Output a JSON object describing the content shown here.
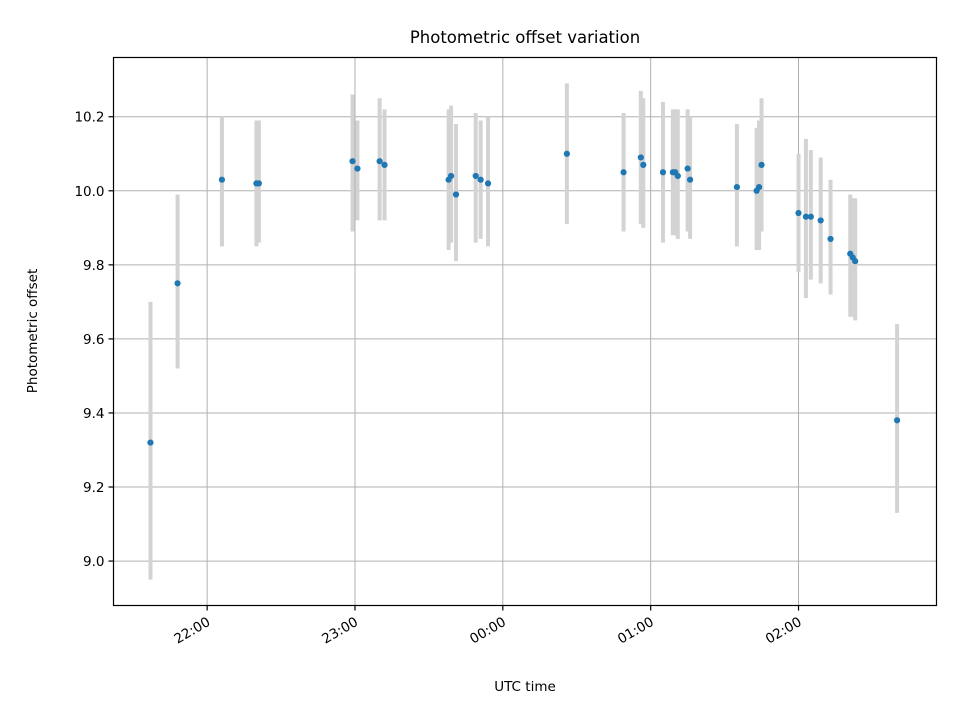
{
  "chart_data": {
    "type": "scatter",
    "title": "Photometric offset variation",
    "xlabel": "UTC time",
    "ylabel": "Photometric offset",
    "x_tick_labels": [
      "22:00",
      "23:00",
      "00:00",
      "01:00",
      "02:00"
    ],
    "x_ticks": [
      "21:00:00",
      "22:00:00",
      "23:00:00",
      "24:00:00",
      "25:00:00",
      "26:00:00"
    ],
    "y_ticks": [
      9.0,
      9.2,
      9.4,
      9.6,
      9.8,
      10.0,
      10.2
    ],
    "y_tick_labels": [
      "9.0",
      "9.2",
      "9.4",
      "9.6",
      "9.8",
      "10.0",
      "10.2"
    ],
    "xlim": [
      "21:22:00",
      "26:56:00"
    ],
    "ylim": [
      8.88,
      10.36
    ],
    "grid": true,
    "series": [
      {
        "color": "#1f77b4",
        "errorbar_color": "#d3d3d3",
        "points": [
          {
            "x": "21:37:00",
            "y": 9.32,
            "lo": 8.95,
            "hi": 9.7
          },
          {
            "x": "21:48:00",
            "y": 9.75,
            "lo": 9.52,
            "hi": 9.99
          },
          {
            "x": "22:06:00",
            "y": 10.03,
            "lo": 9.85,
            "hi": 10.2
          },
          {
            "x": "22:20:00",
            "y": 10.02,
            "lo": 9.85,
            "hi": 10.19
          },
          {
            "x": "22:21:00",
            "y": 10.02,
            "lo": 9.86,
            "hi": 10.19
          },
          {
            "x": "22:59:00",
            "y": 10.08,
            "lo": 9.89,
            "hi": 10.26
          },
          {
            "x": "23:01:00",
            "y": 10.06,
            "lo": 9.92,
            "hi": 10.19
          },
          {
            "x": "23:10:00",
            "y": 10.08,
            "lo": 9.92,
            "hi": 10.25
          },
          {
            "x": "23:12:00",
            "y": 10.07,
            "lo": 9.92,
            "hi": 10.22
          },
          {
            "x": "23:38:00",
            "y": 10.03,
            "lo": 9.84,
            "hi": 10.22
          },
          {
            "x": "23:39:00",
            "y": 10.04,
            "lo": 9.86,
            "hi": 10.23
          },
          {
            "x": "23:41:00",
            "y": 9.99,
            "lo": 9.81,
            "hi": 10.18
          },
          {
            "x": "23:49:00",
            "y": 10.04,
            "lo": 9.86,
            "hi": 10.21
          },
          {
            "x": "23:51:00",
            "y": 10.03,
            "lo": 9.87,
            "hi": 10.19
          },
          {
            "x": "23:54:00",
            "y": 10.02,
            "lo": 9.85,
            "hi": 10.2
          },
          {
            "x": "24:26:00",
            "y": 10.1,
            "lo": 9.91,
            "hi": 10.29
          },
          {
            "x": "24:49:00",
            "y": 10.05,
            "lo": 9.89,
            "hi": 10.21
          },
          {
            "x": "24:56:00",
            "y": 10.09,
            "lo": 9.91,
            "hi": 10.27
          },
          {
            "x": "24:57:00",
            "y": 10.07,
            "lo": 9.9,
            "hi": 10.25
          },
          {
            "x": "25:05:00",
            "y": 10.05,
            "lo": 9.86,
            "hi": 10.24
          },
          {
            "x": "25:09:00",
            "y": 10.05,
            "lo": 9.88,
            "hi": 10.22
          },
          {
            "x": "25:10:00",
            "y": 10.05,
            "lo": 9.88,
            "hi": 10.22
          },
          {
            "x": "25:11:00",
            "y": 10.04,
            "lo": 9.87,
            "hi": 10.22
          },
          {
            "x": "25:15:00",
            "y": 10.06,
            "lo": 9.89,
            "hi": 10.22
          },
          {
            "x": "25:16:00",
            "y": 10.03,
            "lo": 9.87,
            "hi": 10.2
          },
          {
            "x": "25:35:00",
            "y": 10.01,
            "lo": 9.85,
            "hi": 10.18
          },
          {
            "x": "25:43:00",
            "y": 10.0,
            "lo": 9.84,
            "hi": 10.17
          },
          {
            "x": "25:44:00",
            "y": 10.01,
            "lo": 9.84,
            "hi": 10.19
          },
          {
            "x": "25:45:00",
            "y": 10.07,
            "lo": 9.89,
            "hi": 10.25
          },
          {
            "x": "26:00:00",
            "y": 9.94,
            "lo": 9.78,
            "hi": 10.1
          },
          {
            "x": "26:03:00",
            "y": 9.93,
            "lo": 9.71,
            "hi": 10.14
          },
          {
            "x": "26:05:00",
            "y": 9.93,
            "lo": 9.76,
            "hi": 10.11
          },
          {
            "x": "26:09:00",
            "y": 9.92,
            "lo": 9.75,
            "hi": 10.09
          },
          {
            "x": "26:13:00",
            "y": 9.87,
            "lo": 9.72,
            "hi": 10.03
          },
          {
            "x": "26:21:00",
            "y": 9.83,
            "lo": 9.66,
            "hi": 9.99
          },
          {
            "x": "26:22:00",
            "y": 9.82,
            "lo": 9.66,
            "hi": 9.98
          },
          {
            "x": "26:23:00",
            "y": 9.81,
            "lo": 9.65,
            "hi": 9.98
          },
          {
            "x": "26:40:00",
            "y": 9.38,
            "lo": 9.13,
            "hi": 9.64
          }
        ]
      }
    ]
  }
}
